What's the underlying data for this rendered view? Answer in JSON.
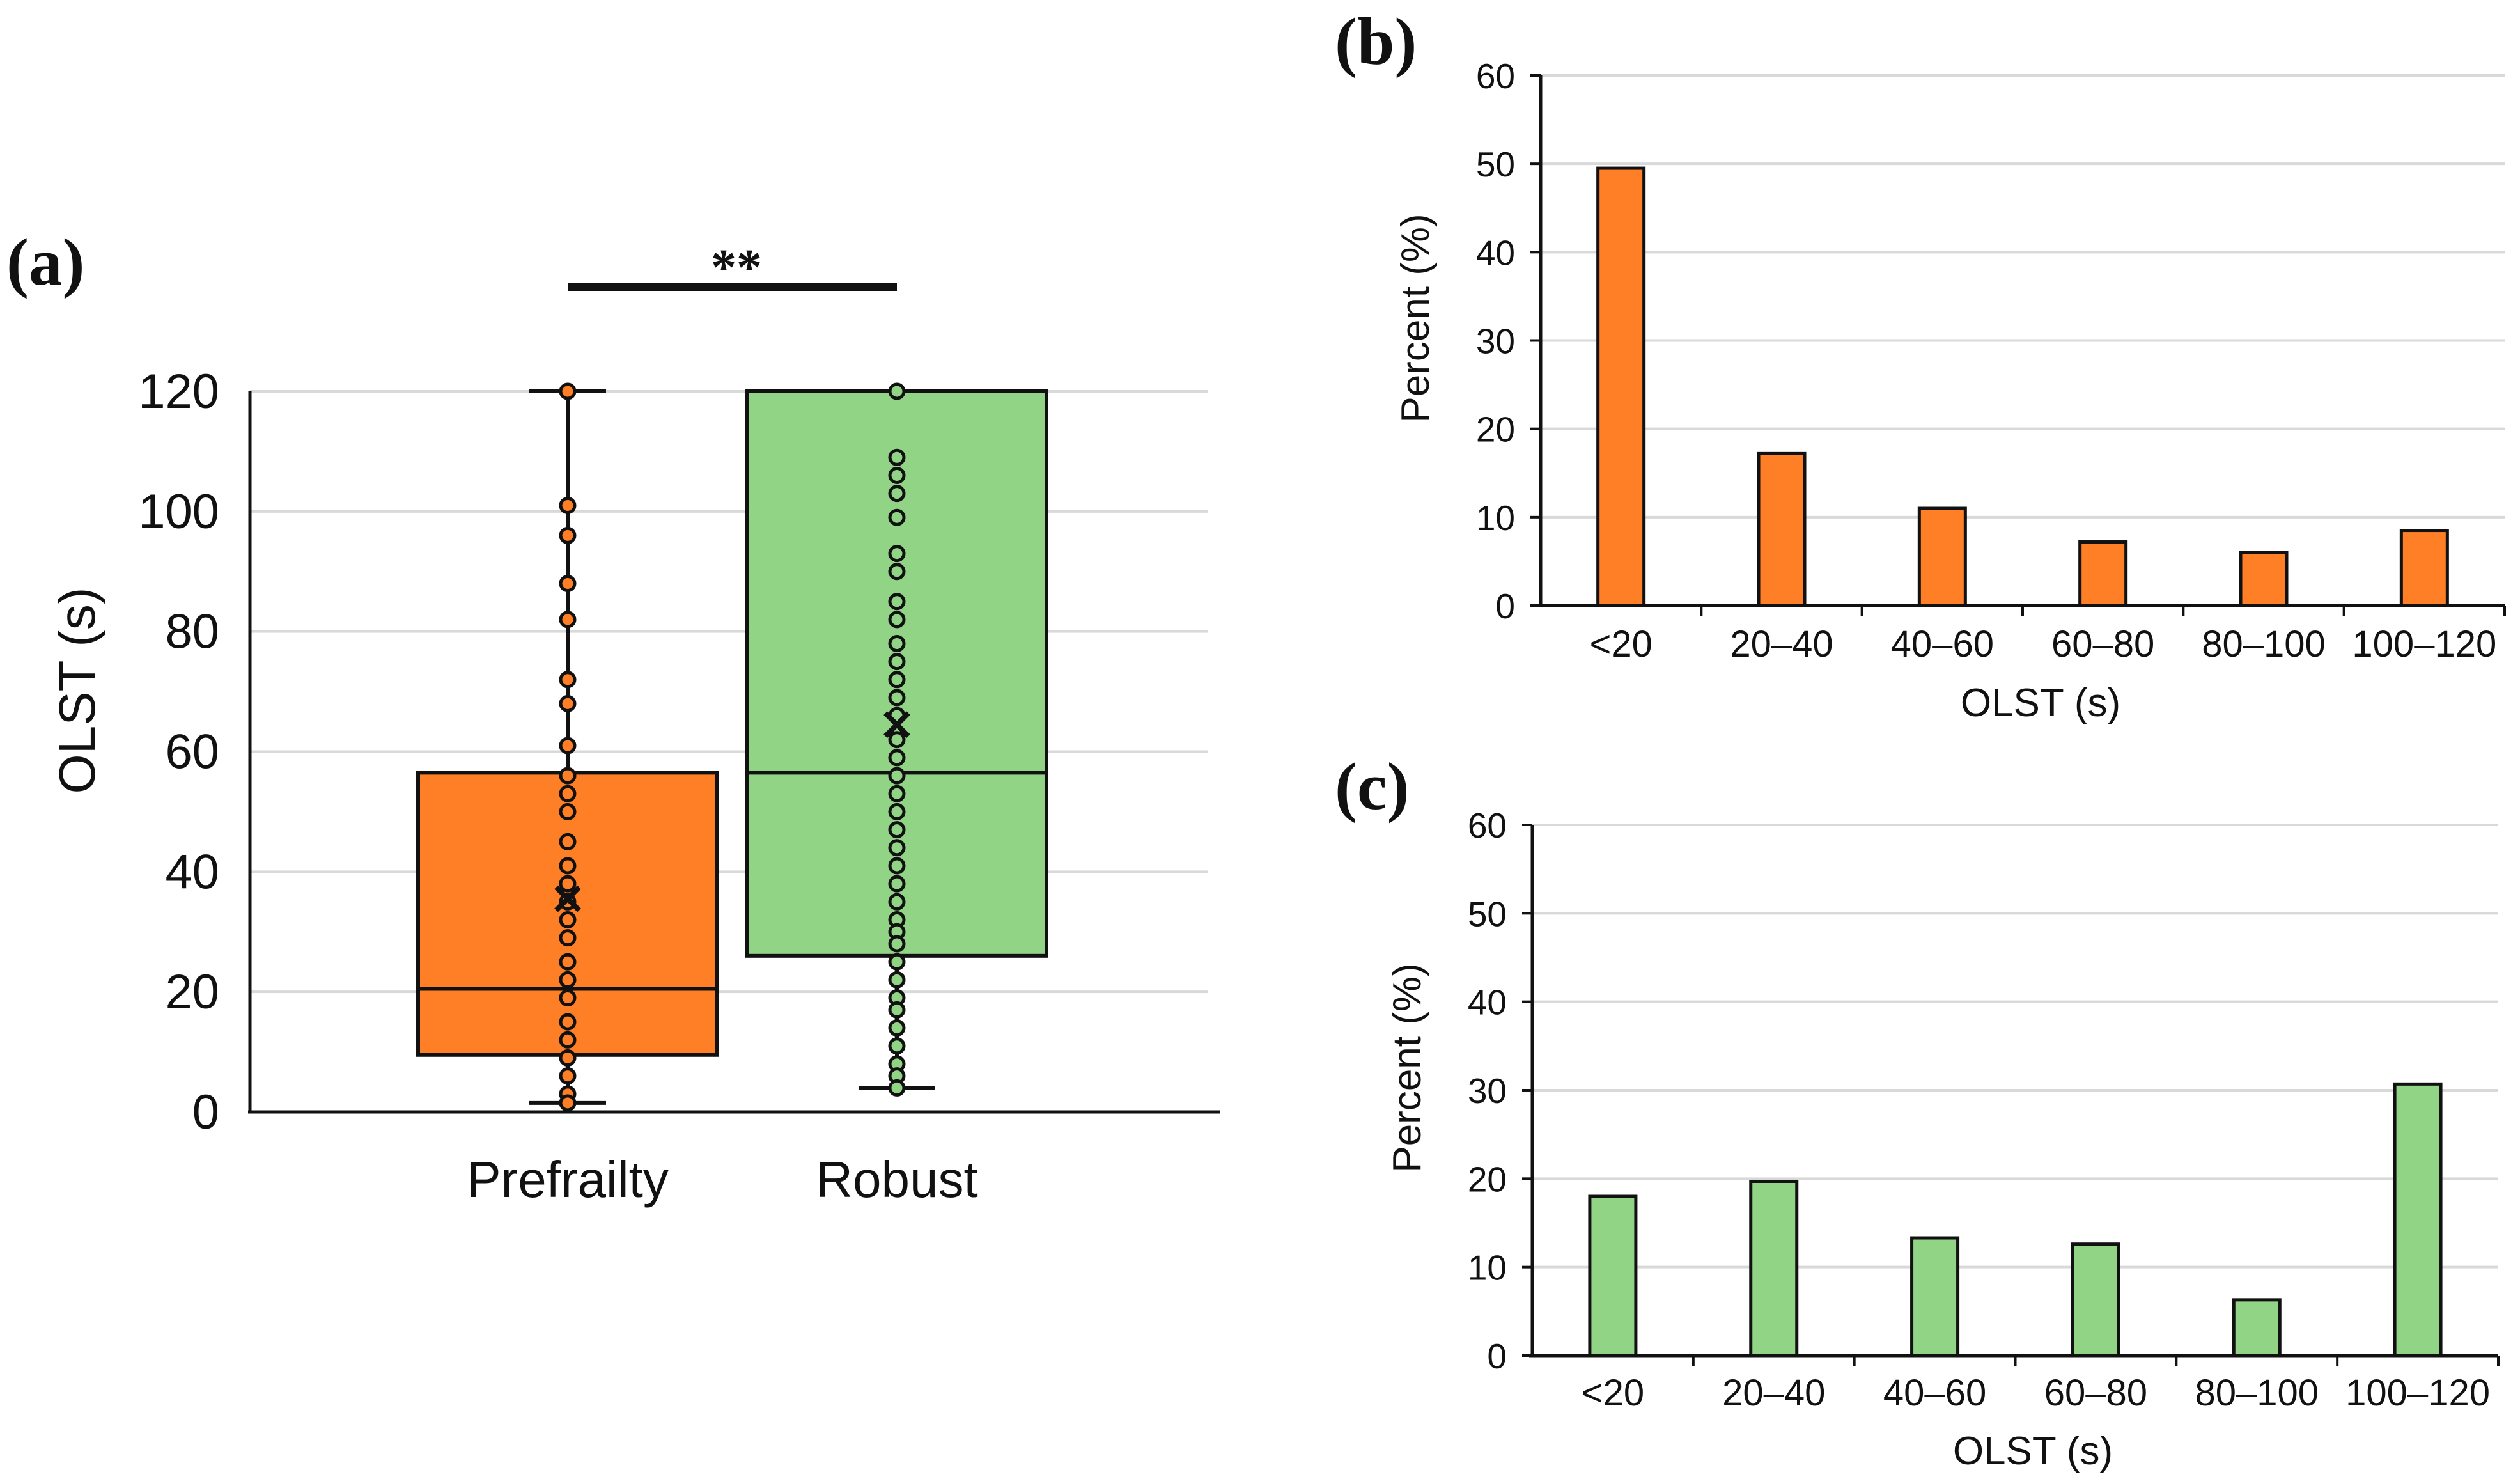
{
  "chart_data": [
    {
      "panel": "(a)",
      "type": "box",
      "ylabel": "OLST (s)",
      "xlabel": "",
      "ylim": [
        0,
        120
      ],
      "yticks": [
        0,
        20,
        40,
        60,
        80,
        100,
        120
      ],
      "grid": true,
      "significance": "**",
      "groups": [
        {
          "name": "Prefrailty",
          "color": "#ff7f27",
          "min": 1.5,
          "q1": 9.5,
          "median": 20.5,
          "q3": 56.5,
          "max": 120,
          "mean": 35.5,
          "points": [
            120,
            101,
            96,
            88,
            82,
            72,
            68,
            61,
            56,
            53,
            50,
            45,
            41,
            38,
            35,
            32,
            29,
            25,
            22,
            19,
            15,
            12,
            9,
            6,
            3,
            1.5
          ]
        },
        {
          "name": "Robust",
          "color": "#92d486",
          "min": 4,
          "q1": 26,
          "median": 56.5,
          "q3": 120,
          "max": 120,
          "mean": 64.5,
          "points": [
            120,
            109,
            106,
            103,
            99,
            93,
            90,
            85,
            82,
            78,
            75,
            72,
            69,
            66,
            62,
            59,
            56,
            53,
            50,
            47,
            44,
            41,
            38,
            35,
            32,
            30,
            28,
            25,
            22,
            19,
            17,
            14,
            11,
            8,
            6,
            4
          ]
        }
      ]
    },
    {
      "panel": "(b)",
      "type": "bar",
      "categories": [
        "<20",
        "20–40",
        "40–60",
        "60–80",
        "80–100",
        "100–120"
      ],
      "values": [
        49.5,
        17.2,
        11,
        7.2,
        6,
        8.5
      ],
      "color": "#ff7f27",
      "xlabel": "OLST (s)",
      "ylabel": "Percent (%)",
      "ylim": [
        0,
        60
      ],
      "yticks": [
        0,
        10,
        20,
        30,
        40,
        50,
        60
      ],
      "grid": true
    },
    {
      "panel": "(c)",
      "type": "bar",
      "categories": [
        "<20",
        "20–40",
        "40–60",
        "60–80",
        "80–100",
        "100–120"
      ],
      "values": [
        18,
        19.7,
        13.3,
        12.6,
        6.3,
        30.7
      ],
      "color": "#92d486",
      "xlabel": "OLST (s)",
      "ylabel": "Percent (%)",
      "ylim": [
        0,
        60
      ],
      "yticks": [
        0,
        10,
        20,
        30,
        40,
        50,
        60
      ],
      "grid": true
    }
  ]
}
